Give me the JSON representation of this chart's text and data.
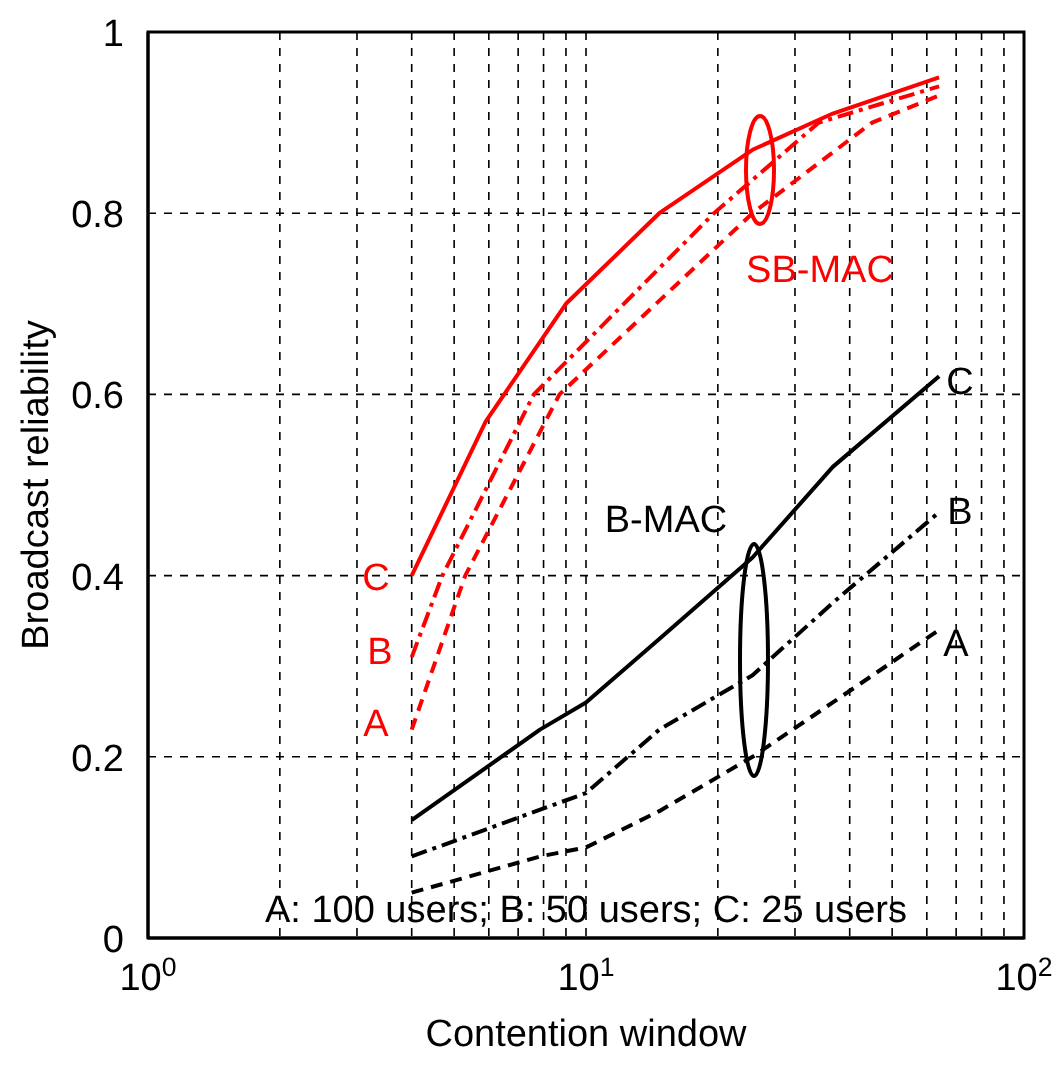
{
  "chart_data": {
    "type": "line",
    "xlabel": "Contention window",
    "ylabel": "Broadcast reliability",
    "log": "x",
    "grid": true,
    "legend": false,
    "marker": "none",
    "xlim": [
      1,
      100
    ],
    "xticks": [
      {
        "value": 1,
        "label": "10$^{0}$"
      },
      {
        "value": 2,
        "label": null
      },
      {
        "value": 3,
        "label": null
      },
      {
        "value": 4,
        "label": null
      },
      {
        "value": 5,
        "label": null
      },
      {
        "value": 6,
        "label": null
      },
      {
        "value": 7,
        "label": null
      },
      {
        "value": 8,
        "label": null
      },
      {
        "value": 9,
        "label": null
      },
      {
        "value": 10,
        "label": "10$^{1}$"
      },
      {
        "value": 20,
        "label": null
      },
      {
        "value": 30,
        "label": null
      },
      {
        "value": 40,
        "label": null
      },
      {
        "value": 50,
        "label": null
      },
      {
        "value": 60,
        "label": null
      },
      {
        "value": 70,
        "label": null
      },
      {
        "value": 80,
        "label": null
      },
      {
        "value": 90,
        "label": null
      },
      {
        "value": 100,
        "label": "10$^{2}$"
      }
    ],
    "ylim": [
      0,
      1
    ],
    "yticks": [
      0,
      0.2,
      0.4,
      0.6,
      0.8,
      1
    ],
    "series": [
      {
        "color": "#ff0000",
        "line_style": "solid",
        "x": [
          4,
          5.9,
          9,
          14.7,
          24,
          36.6,
          64
        ],
        "values": [
          0.4,
          0.57,
          0.7,
          0.8,
          0.87,
          0.91,
          0.95
        ]
      },
      {
        "color": "#ff0000",
        "line_style": "dashdot",
        "x": [
          4,
          4.7,
          7.6,
          19.6,
          34,
          64
        ],
        "values": [
          0.31,
          0.4,
          0.6,
          0.8,
          0.9,
          0.94
        ]
      },
      {
        "color": "#ff0000",
        "line_style": "dashed",
        "x": [
          4,
          5.3,
          8.7,
          24,
          45,
          64
        ],
        "values": [
          0.23,
          0.4,
          0.6,
          0.8,
          0.9,
          0.93
        ]
      },
      {
        "color": "#000000",
        "line_style": "solid",
        "x": [
          4,
          7.85,
          10,
          14.7,
          24,
          36.6,
          64
        ],
        "values": [
          0.13,
          0.23,
          0.26,
          0.33,
          0.42,
          0.52,
          0.62
        ]
      },
      {
        "color": "#000000",
        "line_style": "dashdot",
        "x": [
          4,
          10,
          14.7,
          24,
          36.6,
          64
        ],
        "values": [
          0.09,
          0.16,
          0.23,
          0.29,
          0.37,
          0.47
        ]
      },
      {
        "color": "#000000",
        "line_style": "dashed",
        "x": [
          4,
          7.85,
          10,
          14.7,
          24,
          36.6,
          64
        ],
        "values": [
          0.05,
          0.09,
          0.1,
          0.14,
          0.2,
          0.26,
          0.34
        ]
      }
    ],
    "annotations": [
      "C",
      "B",
      "A",
      "SB-MAC",
      "C",
      "B",
      "A",
      "B-MAC",
      "A: 100 users; B: 50 users; C: 25 users"
    ]
  }
}
